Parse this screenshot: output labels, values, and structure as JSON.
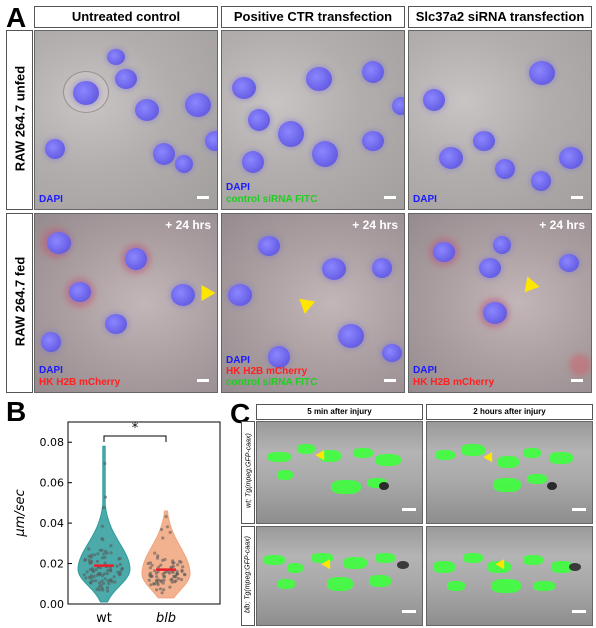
{
  "panel_labels": {
    "a": "A",
    "b": "B",
    "c": "C"
  },
  "panel_a": {
    "columns": [
      "Untreated control",
      "Positive CTR transfection",
      "Slc37a2 siRNA transfection"
    ],
    "rows": [
      "RAW 264.7 unfed",
      "RAW 264.7 fed"
    ],
    "time_label": "+ 24 hrs",
    "tags": {
      "dapi": "DAPI",
      "siRNA": "control siRNA FITC",
      "mcherry": "HK H2B mCherry"
    }
  },
  "panel_c": {
    "columns": [
      "5 min after injury",
      "2 hours after injury"
    ],
    "rows": [
      "wt; Tg(mpeg:GFP-caax)",
      "blb; Tg(mpeg:GFP-caax)"
    ]
  },
  "chart_data": {
    "type": "violin",
    "categories": [
      "wt",
      "blb"
    ],
    "ylabel": "μm/sec",
    "ylim": [
      0,
      0.09
    ],
    "yticks": [
      0.0,
      0.02,
      0.04,
      0.06,
      0.08
    ],
    "ytick_labels": [
      "0.00",
      "0.02",
      "0.04",
      "0.06",
      "0.08"
    ],
    "medians": [
      0.019,
      0.017
    ],
    "significance": "*",
    "colors": {
      "wt": "#2e9b9b",
      "blb": "#f0a47c",
      "median": "#e8202a"
    }
  }
}
